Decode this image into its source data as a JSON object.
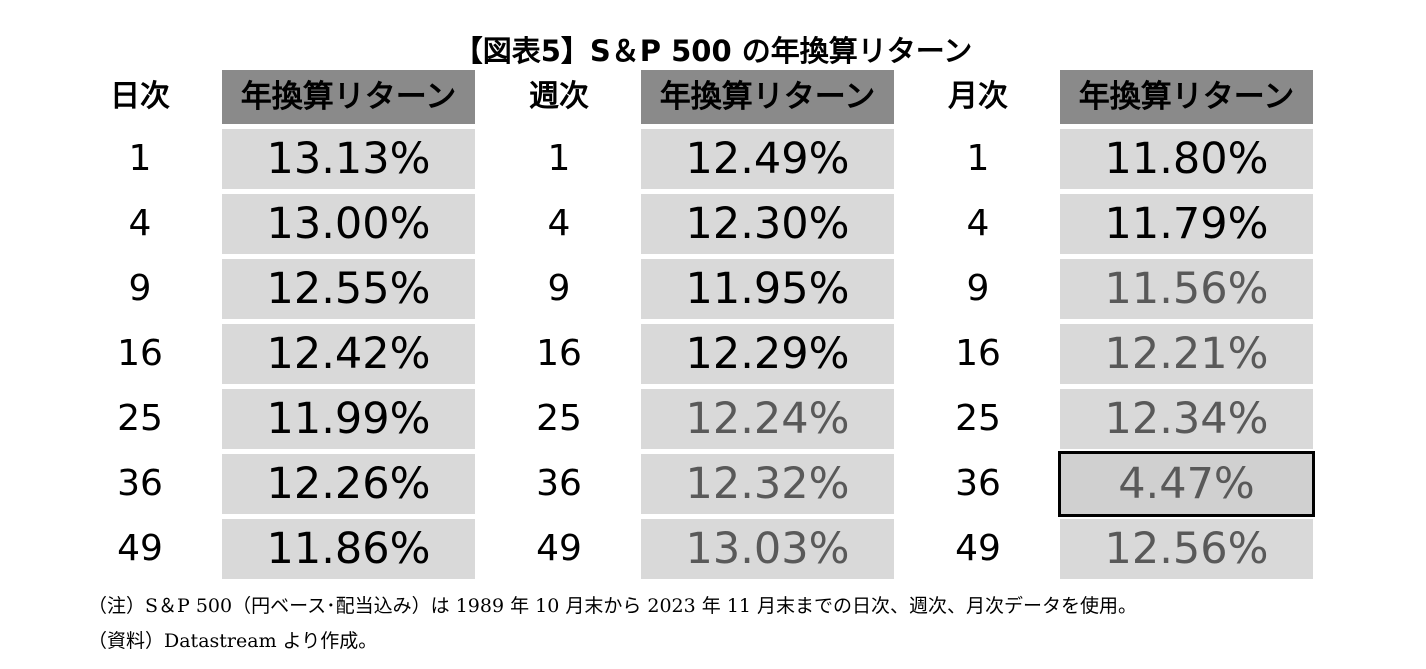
{
  "title": "【図表5】S＆P 500 の年換算リターン",
  "chart_data": {
    "type": "table",
    "title": "【図表5】S＆P 500 の年換算リターン",
    "groups": [
      {
        "period_header": "日次",
        "return_header": "年換算リターン",
        "periods": [
          "1",
          "4",
          "9",
          "16",
          "25",
          "36",
          "49"
        ],
        "returns": [
          "13.13%",
          "13.00%",
          "12.55%",
          "12.42%",
          "11.99%",
          "12.26%",
          "11.86%"
        ],
        "gray_text": [
          false,
          false,
          false,
          false,
          false,
          false,
          false
        ],
        "boxed": [
          false,
          false,
          false,
          false,
          false,
          false,
          false
        ]
      },
      {
        "period_header": "週次",
        "return_header": "年換算リターン",
        "periods": [
          "1",
          "4",
          "9",
          "16",
          "25",
          "36",
          "49"
        ],
        "returns": [
          "12.49%",
          "12.30%",
          "11.95%",
          "12.29%",
          "12.24%",
          "12.32%",
          "13.03%"
        ],
        "gray_text": [
          false,
          false,
          false,
          false,
          true,
          true,
          true
        ],
        "boxed": [
          false,
          false,
          false,
          false,
          false,
          false,
          false
        ]
      },
      {
        "period_header": "月次",
        "return_header": "年換算リターン",
        "periods": [
          "1",
          "4",
          "9",
          "16",
          "25",
          "36",
          "49"
        ],
        "returns": [
          "11.80%",
          "11.79%",
          "11.56%",
          "12.21%",
          "12.34%",
          "4.47%",
          "12.56%"
        ],
        "gray_text": [
          false,
          false,
          true,
          true,
          true,
          true,
          true
        ],
        "boxed": [
          false,
          false,
          false,
          false,
          false,
          true,
          false
        ]
      }
    ]
  },
  "notes": {
    "note1": "（注）S＆P 500（円ベース･配当込み）は 1989 年 10 月末から 2023 年 11 月末までの日次、週次、月次データを使用。",
    "note2": "（資料）Datastream より作成。"
  },
  "colors": {
    "header_bg": "#8a8a8a",
    "cell_bg": "#d9d9d9",
    "gray_text": "#595959",
    "highlight_border": "#000000"
  }
}
